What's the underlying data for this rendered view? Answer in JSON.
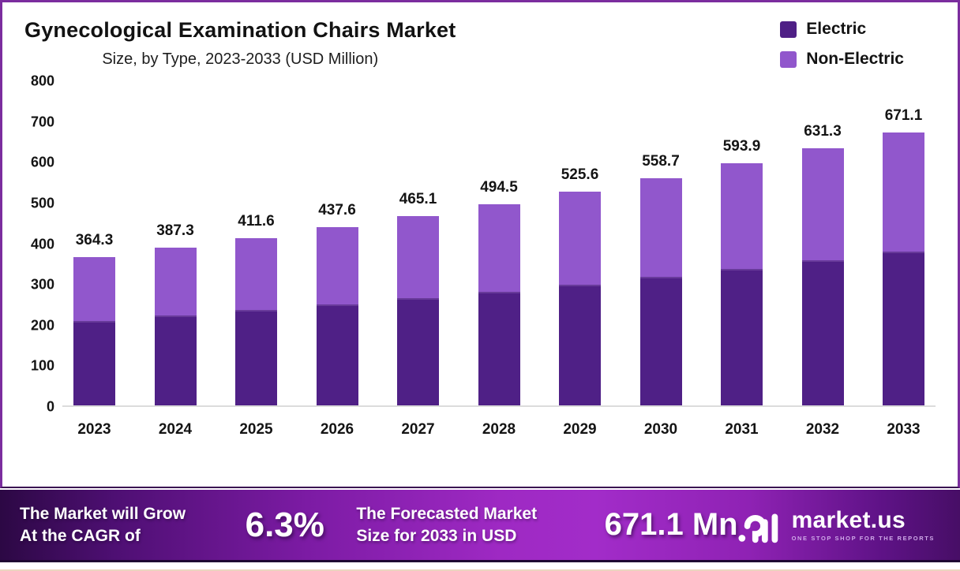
{
  "frame": {
    "border_color": "#7b2d9e"
  },
  "header": {
    "title": "Gynecological Examination Chairs Market",
    "subtitle": "Size, by Type, 2023-2033 (USD Million)"
  },
  "legend": {
    "items": [
      {
        "label": "Electric",
        "color": "#4f2086"
      },
      {
        "label": "Non-Electric",
        "color": "#9157cc"
      }
    ]
  },
  "chart_data": {
    "type": "bar",
    "stacked": true,
    "title": "Gynecological Examination Chairs Market",
    "subtitle": "Size, by Type, 2023-2033 (USD Million)",
    "categories": [
      "2023",
      "2024",
      "2025",
      "2026",
      "2027",
      "2028",
      "2029",
      "2030",
      "2031",
      "2032",
      "2033"
    ],
    "series": [
      {
        "name": "Electric",
        "color": "#4f2086",
        "values": [
          203.3,
          216.1,
          229.7,
          244.2,
          259.5,
          275.9,
          293.3,
          311.8,
          331.4,
          352.3,
          374.5
        ]
      },
      {
        "name": "Non-Electric",
        "color": "#9157cc",
        "values": [
          161.0,
          171.2,
          181.9,
          193.4,
          205.6,
          218.6,
          232.3,
          246.9,
          262.5,
          279.0,
          296.6
        ]
      }
    ],
    "totals": [
      364.3,
      387.3,
      411.6,
      437.6,
      465.1,
      494.5,
      525.6,
      558.7,
      593.9,
      631.3,
      671.1
    ],
    "xlabel": "",
    "ylabel": "",
    "ylim": [
      0,
      800
    ],
    "y_ticks": [
      0,
      100,
      200,
      300,
      400,
      500,
      600,
      700,
      800
    ],
    "grid": false,
    "legend_position": "top-right"
  },
  "footer": {
    "cagr_label_line1": "The Market will Grow",
    "cagr_label_line2": "At the CAGR of",
    "cagr_value": "6.3%",
    "forecast_label_line1": "The Forecasted Market",
    "forecast_label_line2": "Size for 2033 in USD",
    "forecast_value": "671.1 Mn",
    "brand": {
      "name": "market.us",
      "tagline": "ONE STOP SHOP FOR THE REPORTS"
    },
    "gradient_colors": [
      "#2c0844",
      "#a22cc9",
      "#470e66"
    ]
  }
}
